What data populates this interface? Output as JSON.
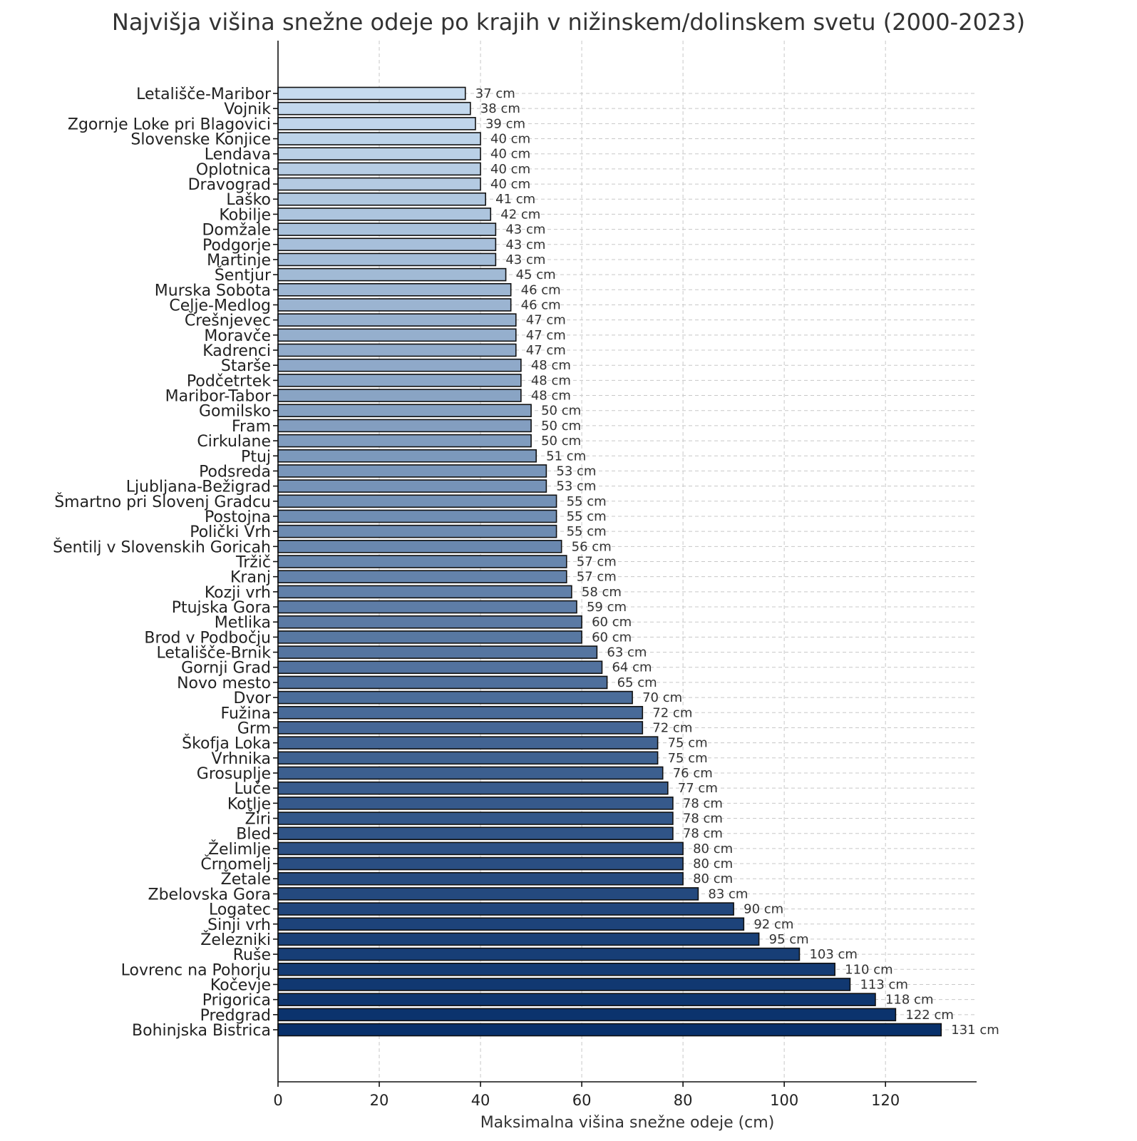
{
  "chart_data": {
    "type": "bar",
    "orientation": "horizontal",
    "title": "Najvišja višina snežne odeje po krajih v nižinskem/dolinskem svetu (2000-2023)",
    "xlabel": "Maksimalna višina snežne odeje (cm)",
    "ylabel": "",
    "xlim": [
      0,
      138
    ],
    "xticks": [
      0,
      20,
      40,
      60,
      80,
      100,
      120
    ],
    "grid": true,
    "value_suffix": " cm",
    "colormap": [
      "#c6dbef",
      "#08306b"
    ],
    "categories": [
      "Letališče-Maribor",
      "Vojnik",
      "Zgornje Loke pri Blagovici",
      "Slovenske Konjice",
      "Lendava",
      "Oplotnica",
      "Dravograd",
      "Laško",
      "Kobilje",
      "Domžale",
      "Podgorje",
      "Martinje",
      "Šentjur",
      "Murska Sobota",
      "Celje-Medlog",
      "Črešnjevec",
      "Moravče",
      "Kadrenci",
      "Starše",
      "Podčetrtek",
      "Maribor-Tabor",
      "Gomilsko",
      "Fram",
      "Cirkulane",
      "Ptuj",
      "Podsreda",
      "Ljubljana-Bežigrad",
      "Šmartno pri Slovenj Gradcu",
      "Postojna",
      "Polički Vrh",
      "Šentilj v Slovenskih Goricah",
      "Tržič",
      "Kranj",
      "Kozji vrh",
      "Ptujska Gora",
      "Metlika",
      "Brod v Podbočju",
      "Letališče-Brnik",
      "Gornji Grad",
      "Novo mesto",
      "Dvor",
      "Fužina",
      "Grm",
      "Škofja Loka",
      "Vrhnika",
      "Grosuplje",
      "Luče",
      "Kotlje",
      "Žiri",
      "Bled",
      "Želimlje",
      "Črnomelj",
      "Žetale",
      "Zbelovska Gora",
      "Logatec",
      "Sinji vrh",
      "Železniki",
      "Ruše",
      "Lovrenc na Pohorju",
      "Kočevje",
      "Prigorica",
      "Predgrad",
      "Bohinjska Bistrica"
    ],
    "values": [
      37,
      38,
      39,
      40,
      40,
      40,
      40,
      41,
      42,
      43,
      43,
      43,
      45,
      46,
      46,
      47,
      47,
      47,
      48,
      48,
      48,
      50,
      50,
      50,
      51,
      53,
      53,
      55,
      55,
      55,
      56,
      57,
      57,
      58,
      59,
      60,
      60,
      63,
      64,
      65,
      70,
      72,
      72,
      75,
      75,
      76,
      77,
      78,
      78,
      78,
      80,
      80,
      80,
      83,
      90,
      92,
      95,
      103,
      110,
      113,
      118,
      122,
      131
    ]
  }
}
